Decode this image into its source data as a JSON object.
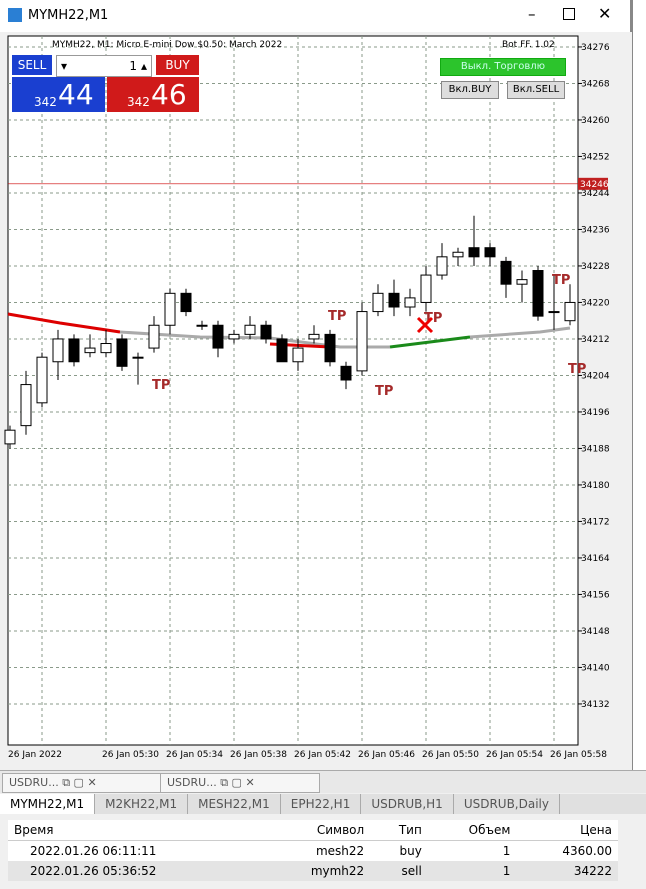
{
  "window": {
    "title": "MYMH22,M1"
  },
  "chart_data": {
    "type": "candlestick",
    "header": "MYMH22, M1:  Micro E-mini Dow $0.50: March 2022",
    "bot": "Bot FF. 1.02",
    "ylim": [
      34123,
      34278.4
    ],
    "yticks": [
      34276,
      34268,
      34260,
      34252,
      34244,
      34236,
      34228,
      34220,
      34212,
      34204,
      34196,
      34188,
      34180,
      34172,
      34164,
      34156,
      34148,
      34140,
      34132
    ],
    "price_line": {
      "value": 34246,
      "label": "34246"
    },
    "xlabels": [
      "26 Jan 2022",
      "26 Jan 05:30",
      "26 Jan 05:34",
      "26 Jan 05:38",
      "26 Jan 05:42",
      "26 Jan 05:46",
      "26 Jan 05:50",
      "26 Jan 05:54",
      "26 Jan 05:58"
    ],
    "grid": true,
    "up_color": "#ffffff",
    "down_color": "#000000",
    "open": [
      34189,
      34193,
      34198,
      34207,
      34212,
      34209,
      34209,
      34212,
      34208,
      34210,
      34215,
      34222,
      34215,
      34215,
      34212,
      34213,
      34215,
      34212,
      34207,
      34212,
      34213,
      34206,
      34205,
      34218,
      34222,
      34219,
      34220,
      34226,
      34230,
      34232,
      34232,
      34229,
      34224,
      34227,
      34218,
      34216
    ],
    "high": [
      34193,
      34205,
      34209,
      34214,
      34213,
      34213,
      34214,
      34213,
      34209,
      34217,
      34223,
      34223,
      34216,
      34216,
      34214,
      34217,
      34216,
      34213,
      34212,
      34215,
      34214,
      34207,
      34220,
      34224,
      34225,
      34223,
      34228,
      34233,
      34232,
      34239,
      34233,
      34230,
      34227,
      34228,
      34226,
      34224
    ],
    "low": [
      34188,
      34191,
      34197,
      34203,
      34206,
      34208,
      34208,
      34205,
      34202,
      34209,
      34213,
      34217,
      34214,
      34208,
      34211,
      34212,
      34211,
      34207,
      34205,
      34211,
      34206,
      34201,
      34204,
      34217,
      34217,
      34217,
      34218,
      34225,
      34228,
      34228,
      34228,
      34221,
      34220,
      34216,
      34214,
      34215
    ],
    "close": [
      34192,
      34202,
      34208,
      34212,
      34207,
      34210,
      34211,
      34206,
      34208,
      34215,
      34222,
      34218,
      34215,
      34210,
      34213,
      34215,
      34212,
      34207,
      34210,
      34213,
      34207,
      34203,
      34218,
      34222,
      34219,
      34221,
      34226,
      34230,
      34231,
      34230,
      34230,
      34224,
      34225,
      34217,
      34218,
      34220
    ],
    "annotations": [
      "TP",
      "TP",
      "TP",
      "TP",
      "TP",
      "TP"
    ]
  },
  "trade_panel": {
    "sell": "SELL",
    "buy": "BUY",
    "volume": "1",
    "bid_prefix": "342",
    "bid": "44",
    "ask_prefix": "342",
    "ask": "46"
  },
  "buttons": {
    "toggle": "Выкл. Торговлю",
    "buy_on": "Вкл.BUY",
    "sell_on": "Вкл.SELL"
  },
  "window_tabs": [
    "USDRU...",
    "USDRU..."
  ],
  "symbol_tabs": [
    "MYMH22,M1",
    "M2KH22,M1",
    "MESH22,M1",
    "EPH22,H1",
    "USDRUB,H1",
    "USDRUB,Daily"
  ],
  "table": {
    "columns": [
      "Время",
      "Символ",
      "Тип",
      "Объем",
      "Цена"
    ],
    "rows": [
      [
        "2022.01.26 06:11:11",
        "mesh22",
        "buy",
        "1",
        "4360.00"
      ],
      [
        "2022.01.26 05:36:52",
        "mymh22",
        "sell",
        "1",
        "34222"
      ]
    ]
  }
}
